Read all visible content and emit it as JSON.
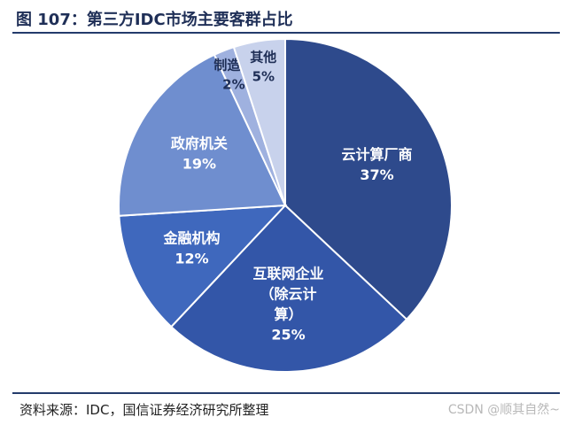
{
  "title": "图 107：第三方IDC市场主要客群占比",
  "source": "资料来源：IDC，国信证券经济研究所整理",
  "watermark": "CSDN @顺其自然~",
  "chart_data": {
    "type": "pie",
    "slices": [
      {
        "label_lines": [
          "云计算厂商"
        ],
        "value": 37,
        "value_label": "37%",
        "color": "#2e4a8c"
      },
      {
        "label_lines": [
          "互联网企业",
          "（除云计",
          "算）"
        ],
        "value": 25,
        "value_label": "25%",
        "color": "#3356a8"
      },
      {
        "label_lines": [
          "金融机构"
        ],
        "value": 12,
        "value_label": "12%",
        "color": "#3f68bd"
      },
      {
        "label_lines": [
          "政府机关"
        ],
        "value": 19,
        "value_label": "19%",
        "color": "#6f8ecf"
      },
      {
        "label_lines": [
          "制造业"
        ],
        "value": 2,
        "value_label": "2%",
        "color": "#9fb1df"
      },
      {
        "label_lines": [
          "其他"
        ],
        "value": 5,
        "value_label": "5%",
        "color": "#c8d2ec"
      }
    ]
  }
}
